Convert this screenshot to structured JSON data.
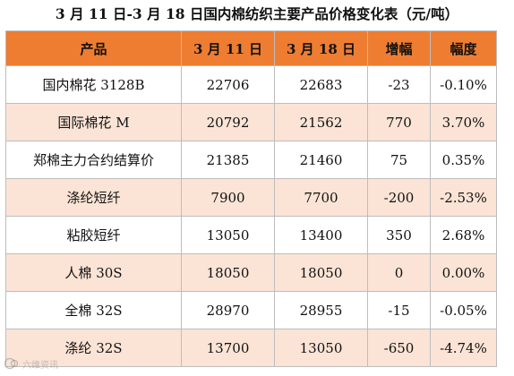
{
  "title": "3 月 11 日-3 月 18 日国内棉纺织主要产品价格变化表（元/吨）",
  "table": {
    "headers": [
      "产品",
      "3 月 11 日",
      "3 月 18 日",
      "增幅",
      "幅度"
    ],
    "rows": [
      [
        "国内棉花 3128B",
        "22706",
        "22683",
        "-23",
        "-0.10%"
      ],
      [
        "国际棉花 M",
        "20792",
        "21562",
        "770",
        "3.70%"
      ],
      [
        "郑棉主力合约结算价",
        "21385",
        "21460",
        "75",
        "0.35%"
      ],
      [
        "涤纶短纤",
        "7900",
        "7700",
        "-200",
        "-2.53%"
      ],
      [
        "粘胶短纤",
        "13050",
        "13400",
        "350",
        "2.68%"
      ],
      [
        "人棉 30S",
        "18050",
        "18050",
        "0",
        "0.00%"
      ],
      [
        "全棉 32S",
        "28970",
        "28955",
        "-15",
        "-0.05%"
      ],
      [
        "涤纶 32S",
        "13700",
        "13050",
        "-650",
        "-4.74%"
      ]
    ]
  },
  "watermark": {
    "text": "六维资讯",
    "icon": "brand-logo-icon"
  },
  "colors": {
    "header_bg": "#ee7d31",
    "alt_row_bg": "#fbe4d6",
    "row_bg": "#ffffff"
  }
}
